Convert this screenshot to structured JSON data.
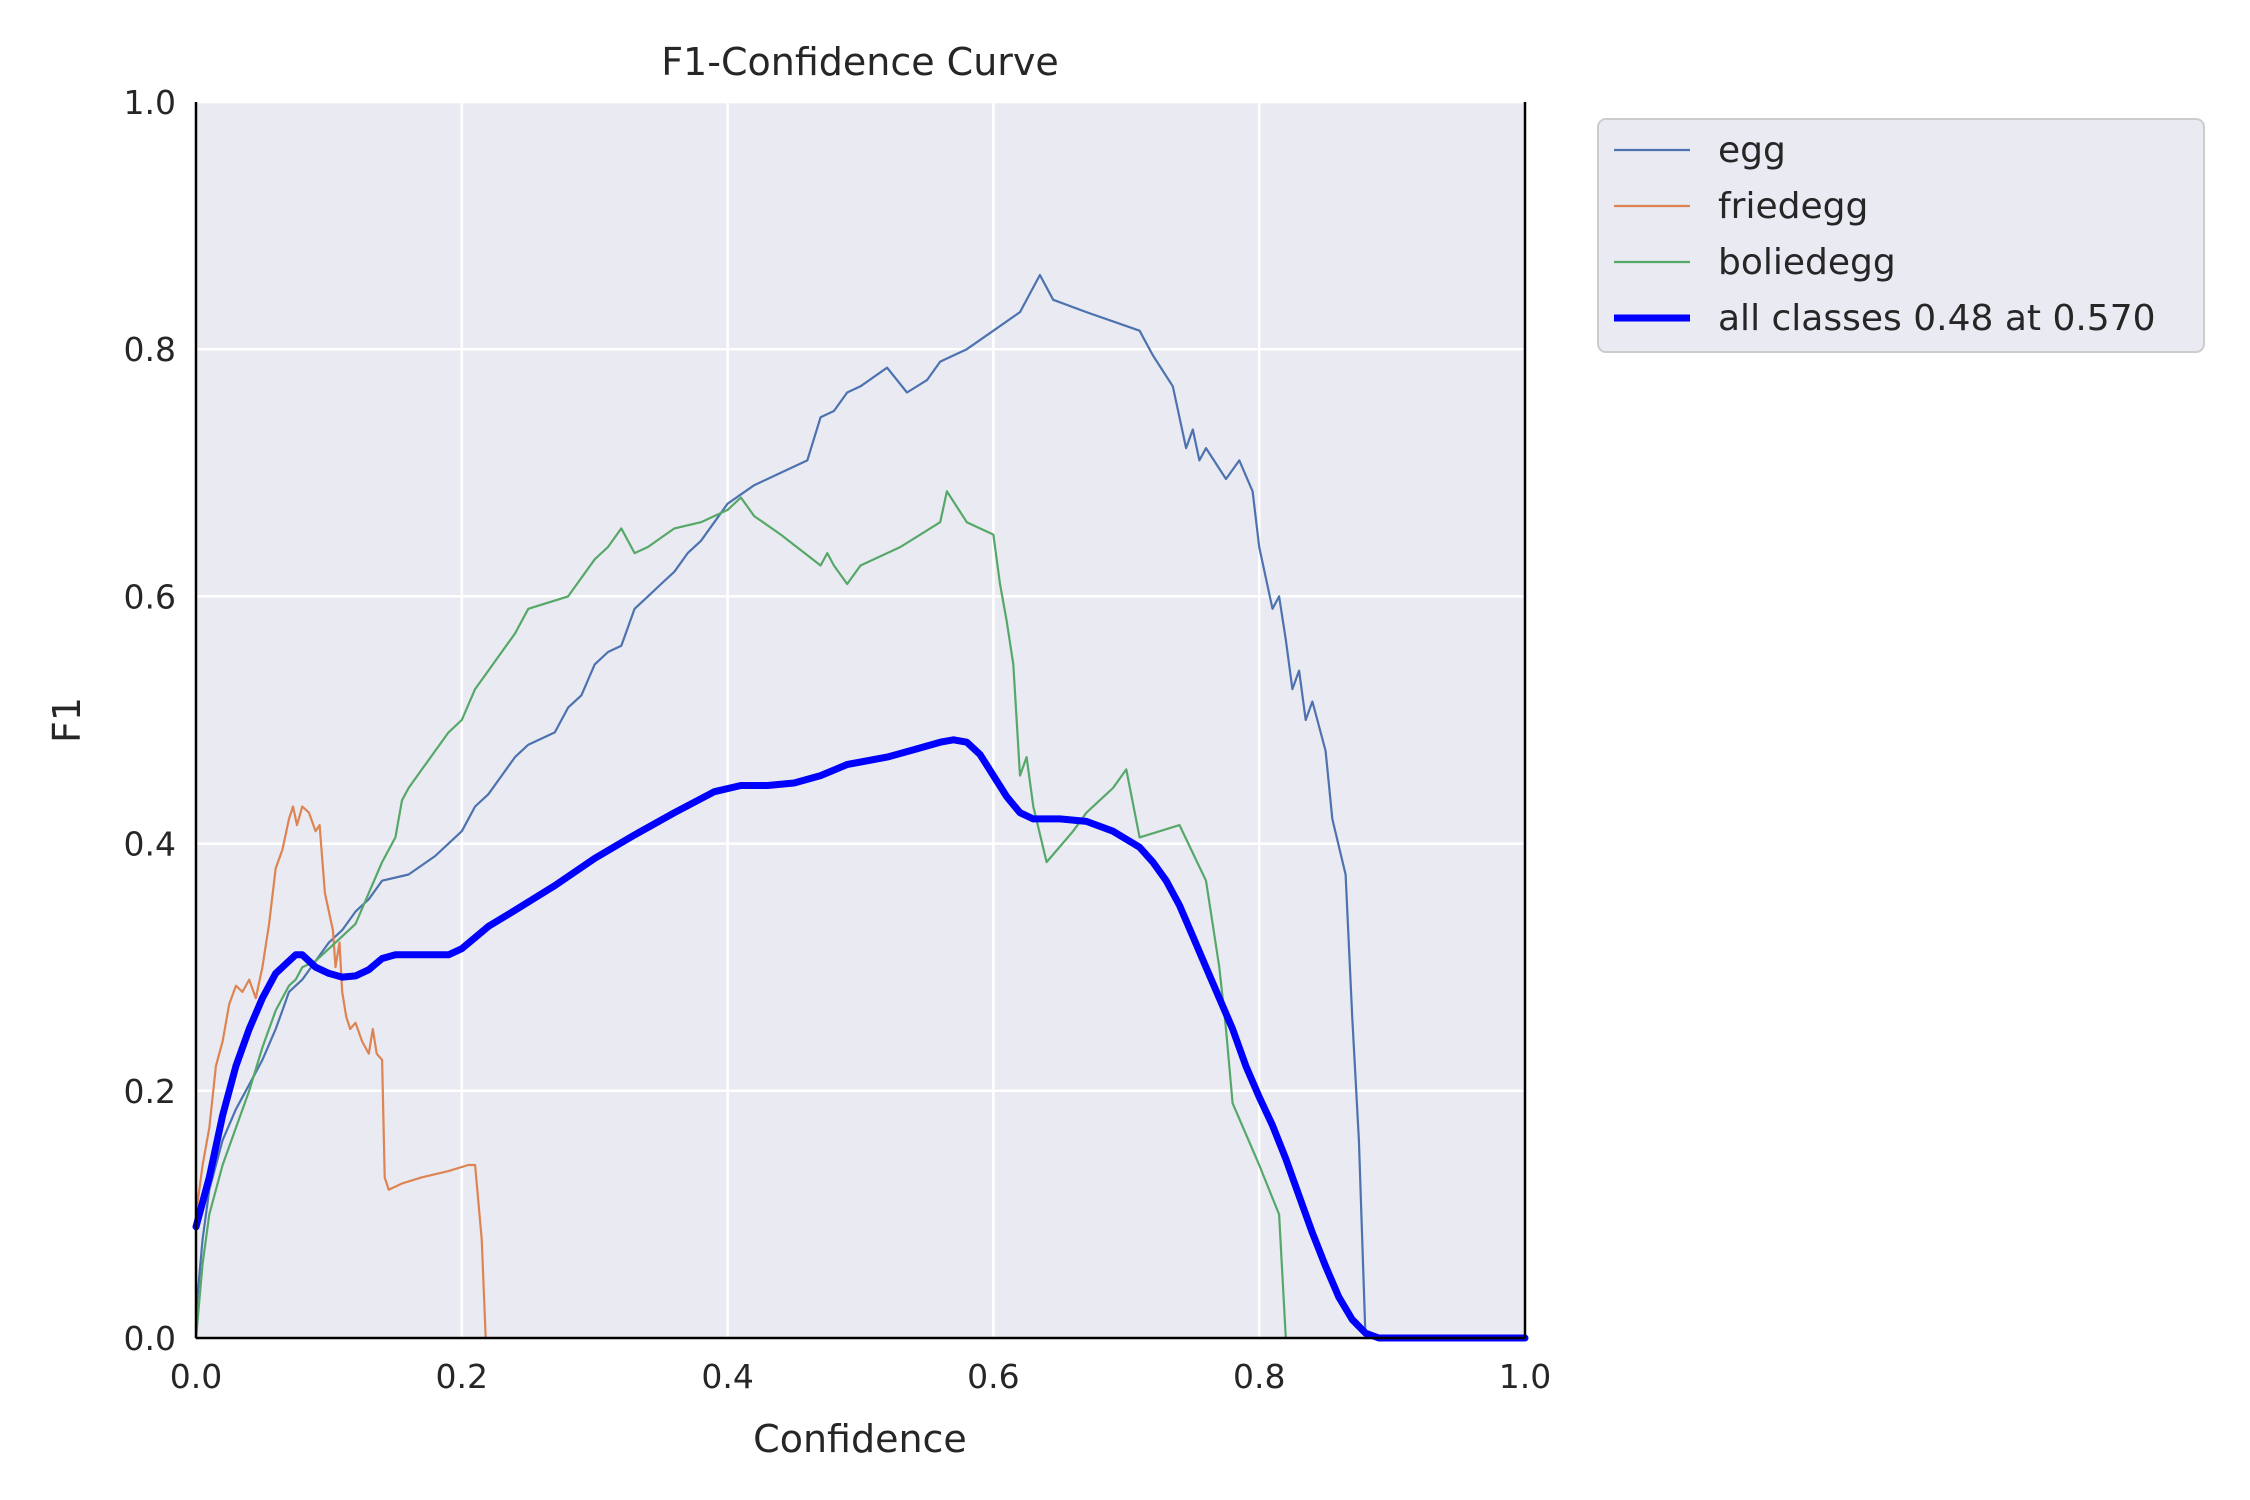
{
  "chart_data": {
    "type": "line",
    "title": "F1-Confidence Curve",
    "xlabel": "Confidence",
    "ylabel": "F1",
    "xlim": [
      0,
      1
    ],
    "ylim": [
      0,
      1
    ],
    "xticks": [
      "0.0",
      "0.2",
      "0.4",
      "0.6",
      "0.8",
      "1.0"
    ],
    "yticks": [
      "0.0",
      "0.2",
      "0.4",
      "0.6",
      "0.8",
      "1.0"
    ],
    "grid": true,
    "legend_position": "outside-top-right",
    "series": [
      {
        "name": "egg",
        "color": "#4c72b0",
        "width": "thin",
        "points": [
          [
            0.0,
            0.02
          ],
          [
            0.005,
            0.08
          ],
          [
            0.01,
            0.12
          ],
          [
            0.02,
            0.16
          ],
          [
            0.03,
            0.185
          ],
          [
            0.04,
            0.205
          ],
          [
            0.05,
            0.225
          ],
          [
            0.06,
            0.25
          ],
          [
            0.065,
            0.265
          ],
          [
            0.07,
            0.28
          ],
          [
            0.08,
            0.29
          ],
          [
            0.09,
            0.305
          ],
          [
            0.1,
            0.32
          ],
          [
            0.11,
            0.33
          ],
          [
            0.12,
            0.345
          ],
          [
            0.13,
            0.355
          ],
          [
            0.14,
            0.37
          ],
          [
            0.16,
            0.375
          ],
          [
            0.18,
            0.39
          ],
          [
            0.19,
            0.4
          ],
          [
            0.2,
            0.41
          ],
          [
            0.21,
            0.43
          ],
          [
            0.22,
            0.44
          ],
          [
            0.23,
            0.455
          ],
          [
            0.24,
            0.47
          ],
          [
            0.25,
            0.48
          ],
          [
            0.27,
            0.49
          ],
          [
            0.28,
            0.51
          ],
          [
            0.29,
            0.52
          ],
          [
            0.3,
            0.545
          ],
          [
            0.31,
            0.555
          ],
          [
            0.32,
            0.56
          ],
          [
            0.33,
            0.59
          ],
          [
            0.34,
            0.6
          ],
          [
            0.35,
            0.61
          ],
          [
            0.36,
            0.62
          ],
          [
            0.37,
            0.635
          ],
          [
            0.38,
            0.645
          ],
          [
            0.39,
            0.66
          ],
          [
            0.4,
            0.675
          ],
          [
            0.42,
            0.69
          ],
          [
            0.44,
            0.7
          ],
          [
            0.46,
            0.71
          ],
          [
            0.47,
            0.745
          ],
          [
            0.48,
            0.75
          ],
          [
            0.49,
            0.765
          ],
          [
            0.5,
            0.77
          ],
          [
            0.52,
            0.785
          ],
          [
            0.535,
            0.765
          ],
          [
            0.55,
            0.775
          ],
          [
            0.56,
            0.79
          ],
          [
            0.58,
            0.8
          ],
          [
            0.6,
            0.815
          ],
          [
            0.62,
            0.83
          ],
          [
            0.635,
            0.86
          ],
          [
            0.645,
            0.84
          ],
          [
            0.67,
            0.83
          ],
          [
            0.71,
            0.815
          ],
          [
            0.72,
            0.795
          ],
          [
            0.735,
            0.77
          ],
          [
            0.745,
            0.72
          ],
          [
            0.75,
            0.735
          ],
          [
            0.755,
            0.71
          ],
          [
            0.76,
            0.72
          ],
          [
            0.775,
            0.695
          ],
          [
            0.785,
            0.71
          ],
          [
            0.795,
            0.685
          ],
          [
            0.8,
            0.64
          ],
          [
            0.81,
            0.59
          ],
          [
            0.815,
            0.6
          ],
          [
            0.82,
            0.565
          ],
          [
            0.825,
            0.525
          ],
          [
            0.83,
            0.54
          ],
          [
            0.835,
            0.5
          ],
          [
            0.84,
            0.515
          ],
          [
            0.85,
            0.475
          ],
          [
            0.855,
            0.42
          ],
          [
            0.865,
            0.375
          ],
          [
            0.87,
            0.26
          ],
          [
            0.875,
            0.16
          ],
          [
            0.88,
            0.0
          ],
          [
            1.0,
            0.0
          ]
        ]
      },
      {
        "name": "friedegg",
        "color": "#dd8452",
        "width": "thin",
        "points": [
          [
            0.0,
            0.1
          ],
          [
            0.005,
            0.14
          ],
          [
            0.01,
            0.17
          ],
          [
            0.015,
            0.22
          ],
          [
            0.02,
            0.24
          ],
          [
            0.025,
            0.27
          ],
          [
            0.03,
            0.285
          ],
          [
            0.035,
            0.28
          ],
          [
            0.04,
            0.29
          ],
          [
            0.045,
            0.275
          ],
          [
            0.05,
            0.3
          ],
          [
            0.055,
            0.335
          ],
          [
            0.06,
            0.38
          ],
          [
            0.065,
            0.395
          ],
          [
            0.07,
            0.42
          ],
          [
            0.073,
            0.43
          ],
          [
            0.076,
            0.415
          ],
          [
            0.08,
            0.43
          ],
          [
            0.085,
            0.425
          ],
          [
            0.09,
            0.41
          ],
          [
            0.093,
            0.415
          ],
          [
            0.097,
            0.36
          ],
          [
            0.1,
            0.345
          ],
          [
            0.103,
            0.33
          ],
          [
            0.105,
            0.3
          ],
          [
            0.108,
            0.32
          ],
          [
            0.11,
            0.28
          ],
          [
            0.113,
            0.26
          ],
          [
            0.116,
            0.25
          ],
          [
            0.12,
            0.255
          ],
          [
            0.125,
            0.24
          ],
          [
            0.13,
            0.23
          ],
          [
            0.133,
            0.25
          ],
          [
            0.136,
            0.23
          ],
          [
            0.14,
            0.225
          ],
          [
            0.142,
            0.13
          ],
          [
            0.145,
            0.12
          ],
          [
            0.155,
            0.125
          ],
          [
            0.17,
            0.13
          ],
          [
            0.19,
            0.135
          ],
          [
            0.205,
            0.14
          ],
          [
            0.21,
            0.14
          ],
          [
            0.215,
            0.08
          ],
          [
            0.218,
            0.0
          ]
        ]
      },
      {
        "name": "boliedegg",
        "color": "#55a868",
        "width": "thin",
        "points": [
          [
            0.0,
            0.0
          ],
          [
            0.005,
            0.06
          ],
          [
            0.01,
            0.1
          ],
          [
            0.02,
            0.14
          ],
          [
            0.03,
            0.17
          ],
          [
            0.04,
            0.2
          ],
          [
            0.05,
            0.235
          ],
          [
            0.06,
            0.265
          ],
          [
            0.07,
            0.285
          ],
          [
            0.075,
            0.29
          ],
          [
            0.08,
            0.3
          ],
          [
            0.09,
            0.305
          ],
          [
            0.1,
            0.315
          ],
          [
            0.11,
            0.325
          ],
          [
            0.12,
            0.335
          ],
          [
            0.13,
            0.36
          ],
          [
            0.14,
            0.385
          ],
          [
            0.15,
            0.405
          ],
          [
            0.155,
            0.435
          ],
          [
            0.16,
            0.445
          ],
          [
            0.17,
            0.46
          ],
          [
            0.18,
            0.475
          ],
          [
            0.19,
            0.49
          ],
          [
            0.2,
            0.5
          ],
          [
            0.21,
            0.525
          ],
          [
            0.22,
            0.54
          ],
          [
            0.23,
            0.555
          ],
          [
            0.24,
            0.57
          ],
          [
            0.25,
            0.59
          ],
          [
            0.28,
            0.6
          ],
          [
            0.29,
            0.615
          ],
          [
            0.3,
            0.63
          ],
          [
            0.31,
            0.64
          ],
          [
            0.32,
            0.655
          ],
          [
            0.33,
            0.635
          ],
          [
            0.34,
            0.64
          ],
          [
            0.36,
            0.655
          ],
          [
            0.38,
            0.66
          ],
          [
            0.4,
            0.67
          ],
          [
            0.41,
            0.68
          ],
          [
            0.42,
            0.665
          ],
          [
            0.44,
            0.65
          ],
          [
            0.47,
            0.625
          ],
          [
            0.475,
            0.635
          ],
          [
            0.48,
            0.625
          ],
          [
            0.49,
            0.61
          ],
          [
            0.5,
            0.625
          ],
          [
            0.53,
            0.64
          ],
          [
            0.56,
            0.66
          ],
          [
            0.565,
            0.685
          ],
          [
            0.58,
            0.66
          ],
          [
            0.6,
            0.65
          ],
          [
            0.605,
            0.61
          ],
          [
            0.61,
            0.58
          ],
          [
            0.615,
            0.545
          ],
          [
            0.62,
            0.455
          ],
          [
            0.625,
            0.47
          ],
          [
            0.63,
            0.43
          ],
          [
            0.64,
            0.385
          ],
          [
            0.66,
            0.41
          ],
          [
            0.67,
            0.425
          ],
          [
            0.69,
            0.445
          ],
          [
            0.7,
            0.46
          ],
          [
            0.71,
            0.405
          ],
          [
            0.74,
            0.415
          ],
          [
            0.76,
            0.37
          ],
          [
            0.77,
            0.3
          ],
          [
            0.775,
            0.25
          ],
          [
            0.78,
            0.19
          ],
          [
            0.8,
            0.14
          ],
          [
            0.815,
            0.1
          ],
          [
            0.82,
            0.0
          ]
        ]
      },
      {
        "name": "all classes 0.48 at 0.570",
        "color": "#0000ff",
        "width": "thick",
        "points": [
          [
            0.0,
            0.09
          ],
          [
            0.01,
            0.13
          ],
          [
            0.02,
            0.18
          ],
          [
            0.03,
            0.22
          ],
          [
            0.04,
            0.25
          ],
          [
            0.05,
            0.275
          ],
          [
            0.06,
            0.295
          ],
          [
            0.07,
            0.305
          ],
          [
            0.075,
            0.31
          ],
          [
            0.08,
            0.31
          ],
          [
            0.09,
            0.3
          ],
          [
            0.1,
            0.295
          ],
          [
            0.11,
            0.292
          ],
          [
            0.12,
            0.293
          ],
          [
            0.13,
            0.298
          ],
          [
            0.14,
            0.307
          ],
          [
            0.15,
            0.31
          ],
          [
            0.17,
            0.31
          ],
          [
            0.19,
            0.31
          ],
          [
            0.2,
            0.315
          ],
          [
            0.22,
            0.333
          ],
          [
            0.24,
            0.346
          ],
          [
            0.27,
            0.366
          ],
          [
            0.3,
            0.388
          ],
          [
            0.33,
            0.407
          ],
          [
            0.36,
            0.425
          ],
          [
            0.39,
            0.442
          ],
          [
            0.41,
            0.447
          ],
          [
            0.43,
            0.447
          ],
          [
            0.45,
            0.449
          ],
          [
            0.47,
            0.455
          ],
          [
            0.49,
            0.464
          ],
          [
            0.52,
            0.47
          ],
          [
            0.54,
            0.476
          ],
          [
            0.56,
            0.482
          ],
          [
            0.57,
            0.484
          ],
          [
            0.58,
            0.482
          ],
          [
            0.59,
            0.472
          ],
          [
            0.6,
            0.455
          ],
          [
            0.61,
            0.438
          ],
          [
            0.62,
            0.425
          ],
          [
            0.63,
            0.42
          ],
          [
            0.65,
            0.42
          ],
          [
            0.67,
            0.418
          ],
          [
            0.69,
            0.41
          ],
          [
            0.71,
            0.397
          ],
          [
            0.72,
            0.385
          ],
          [
            0.73,
            0.37
          ],
          [
            0.74,
            0.35
          ],
          [
            0.75,
            0.325
          ],
          [
            0.76,
            0.3
          ],
          [
            0.77,
            0.275
          ],
          [
            0.78,
            0.25
          ],
          [
            0.79,
            0.22
          ],
          [
            0.8,
            0.195
          ],
          [
            0.81,
            0.172
          ],
          [
            0.82,
            0.145
          ],
          [
            0.83,
            0.115
          ],
          [
            0.84,
            0.085
          ],
          [
            0.85,
            0.058
          ],
          [
            0.86,
            0.033
          ],
          [
            0.87,
            0.015
          ],
          [
            0.88,
            0.004
          ],
          [
            0.89,
            0.0
          ],
          [
            1.0,
            0.0
          ]
        ]
      }
    ]
  }
}
